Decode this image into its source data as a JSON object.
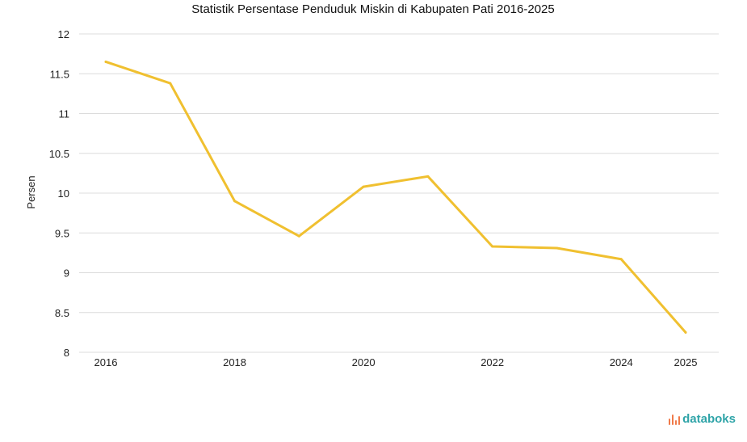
{
  "colors": {
    "line": "#f0c030",
    "grid": "#dcdcdc",
    "brand": "#2fa4a8",
    "brand_accent": "#f07a4a"
  },
  "brand": {
    "name": "databoks",
    "icon": "databoks-bars-icon"
  },
  "chart_data": {
    "type": "line",
    "title": "Statistik Persentase Penduduk Miskin di Kabupaten Pati 2016-2025",
    "xlabel": "",
    "ylabel": "Persen",
    "ylim": [
      8,
      12
    ],
    "yticks": [
      8,
      8.5,
      9,
      9.5,
      10,
      10.5,
      11,
      11.5,
      12
    ],
    "xticks": [
      2016,
      2018,
      2020,
      2022,
      2024,
      2025
    ],
    "grid": true,
    "series": [
      {
        "name": "Persentase Penduduk Miskin",
        "x": [
          2016,
          2017,
          2018,
          2019,
          2020,
          2021,
          2022,
          2023,
          2024,
          2025
        ],
        "values": [
          11.65,
          11.38,
          9.9,
          9.46,
          10.08,
          10.21,
          9.33,
          9.31,
          9.17,
          8.25
        ]
      }
    ]
  }
}
